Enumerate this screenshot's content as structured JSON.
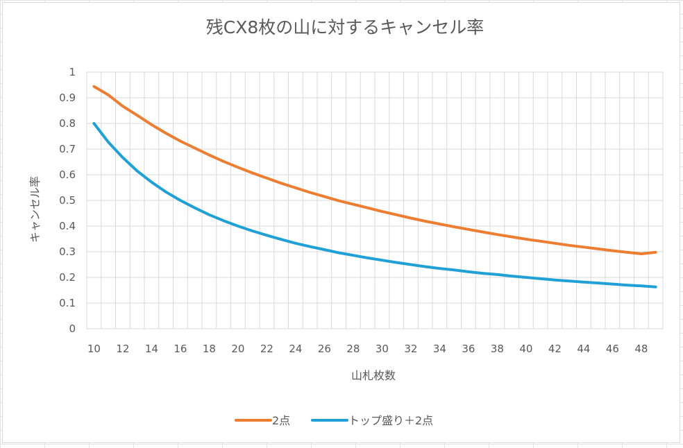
{
  "chart_data": {
    "type": "line",
    "title": "残CX8枚の山に対するキャンセル率",
    "xlabel": "山札枚数",
    "ylabel": "キャンセル率",
    "ylim": [
      0,
      1
    ],
    "yticks": [
      "0",
      "0.1",
      "0.2",
      "0.3",
      "0.4",
      "0.5",
      "0.6",
      "0.7",
      "0.8",
      "0.9",
      "1"
    ],
    "xticks": [
      "10",
      "12",
      "14",
      "16",
      "18",
      "20",
      "22",
      "24",
      "26",
      "28",
      "30",
      "32",
      "34",
      "36",
      "38",
      "40",
      "42",
      "44",
      "46",
      "48"
    ],
    "x": [
      10,
      11,
      12,
      13,
      14,
      15,
      16,
      17,
      18,
      19,
      20,
      21,
      22,
      23,
      24,
      25,
      26,
      27,
      28,
      29,
      30,
      31,
      32,
      33,
      34,
      35,
      36,
      37,
      38,
      39,
      40,
      41,
      42,
      43,
      44,
      45,
      46,
      47,
      48,
      49
    ],
    "grid": true,
    "legend": "bottom",
    "series": [
      {
        "name": "2点",
        "color": "#ed7d31",
        "values": [
          0.944,
          0.911,
          0.867,
          0.832,
          0.795,
          0.762,
          0.731,
          0.704,
          0.677,
          0.652,
          0.629,
          0.607,
          0.587,
          0.567,
          0.549,
          0.531,
          0.515,
          0.499,
          0.485,
          0.471,
          0.457,
          0.444,
          0.431,
          0.419,
          0.408,
          0.397,
          0.387,
          0.377,
          0.367,
          0.358,
          0.349,
          0.341,
          0.333,
          0.325,
          0.318,
          0.311,
          0.304,
          0.298,
          0.292,
          0.298
        ]
      },
      {
        "name": "トップ盛り＋2点",
        "color": "#1fa0d6",
        "values": [
          0.8,
          0.727,
          0.667,
          0.615,
          0.571,
          0.533,
          0.5,
          0.471,
          0.444,
          0.421,
          0.4,
          0.381,
          0.364,
          0.348,
          0.333,
          0.32,
          0.308,
          0.296,
          0.286,
          0.276,
          0.267,
          0.258,
          0.25,
          0.242,
          0.235,
          0.229,
          0.222,
          0.216,
          0.211,
          0.205,
          0.2,
          0.195,
          0.19,
          0.186,
          0.182,
          0.178,
          0.174,
          0.17,
          0.167,
          0.163
        ]
      }
    ]
  }
}
